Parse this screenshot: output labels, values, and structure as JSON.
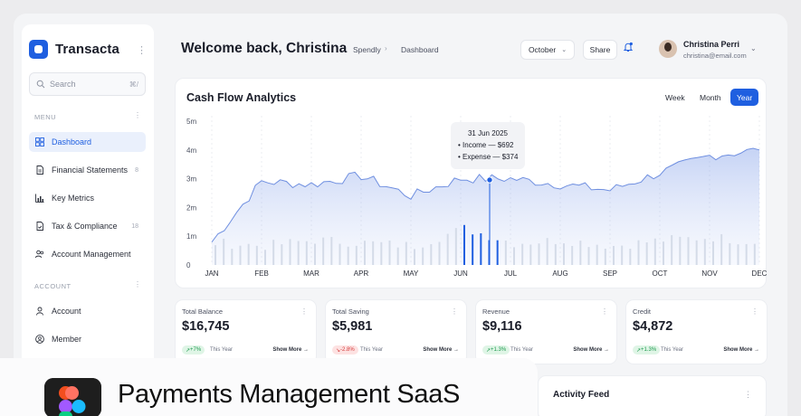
{
  "brand": {
    "name": "Transacta",
    "icon": "app-logo-icon"
  },
  "search": {
    "placeholder": "Search",
    "shortcut": "⌘/"
  },
  "sidebar": {
    "menu_label": "MENU",
    "account_label": "ACCOUNT",
    "menu_items": [
      {
        "label": "Dashboard",
        "icon": "grid-icon",
        "count": "",
        "active": true
      },
      {
        "label": "Financial Statements",
        "icon": "document-icon",
        "count": "8",
        "active": false
      },
      {
        "label": "Key Metrics",
        "icon": "bar-chart-icon",
        "count": "",
        "active": false
      },
      {
        "label": "Tax & Compliance",
        "icon": "file-check-icon",
        "count": "18",
        "active": false
      },
      {
        "label": "Account Management",
        "icon": "users-icon",
        "count": "",
        "active": false
      }
    ],
    "account_items": [
      {
        "label": "Account",
        "icon": "user-icon"
      },
      {
        "label": "Member",
        "icon": "member-icon"
      }
    ]
  },
  "header": {
    "title": "Welcome back, Christina",
    "breadcrumb": [
      "Spendly",
      "Dashboard"
    ],
    "period": "October",
    "share_label": "Share",
    "user_name": "Christina Perri",
    "user_email": "christina@email.com"
  },
  "chart_card": {
    "title": "Cash Flow Analytics",
    "ranges": [
      "Week",
      "Month",
      "Year"
    ],
    "active_range": "Year",
    "tooltip": {
      "date": "31 Jun 2025",
      "income": "• Income — $692",
      "expense": "• Expense — $374"
    }
  },
  "chart_data": {
    "type": "area",
    "x": [
      "JAN",
      "FEB",
      "MAR",
      "APR",
      "MAY",
      "JUN",
      "JUL",
      "AUG",
      "SEP",
      "OCT",
      "NOV",
      "DEC"
    ],
    "yticks": [
      "0",
      "1m",
      "2m",
      "3m",
      "4m",
      "5m"
    ],
    "ylim": [
      0,
      5
    ],
    "series": [
      {
        "name": "Income",
        "values": [
          0.8,
          2.9,
          2.8,
          3.1,
          2.4,
          3.0,
          3.0,
          2.8,
          2.6,
          3.2,
          3.8,
          4.0
        ]
      },
      {
        "name": "Expense",
        "values": [
          0.7,
          0.6,
          0.8,
          0.7,
          0.6,
          1.2,
          0.7,
          0.8,
          0.6,
          0.8,
          0.9,
          0.7
        ]
      }
    ],
    "grid": true
  },
  "stats": [
    {
      "label": "Total Balance",
      "value": "$16,745",
      "change": "+7%",
      "trend": "up",
      "period": "This Year",
      "more": "Show More →"
    },
    {
      "label": "Total Saving",
      "value": "$5,981",
      "change": "-2.8%",
      "trend": "down",
      "period": "This Year",
      "more": "Show More →"
    },
    {
      "label": "Revenue",
      "value": "$9,116",
      "change": "+1.3%",
      "trend": "up",
      "period": "This Year",
      "more": "Show More →"
    },
    {
      "label": "Credit",
      "value": "$4,872",
      "change": "+1.3%",
      "trend": "up",
      "period": "This Year",
      "more": "Show More →"
    }
  ],
  "activity": {
    "title": "Activity Feed"
  },
  "banner": {
    "text": "Payments Management SaaS",
    "icon": "figma-logo-icon"
  },
  "colors": {
    "accent": "#1f5fe0",
    "up": "#1d9a4e",
    "down": "#d43c3c"
  }
}
